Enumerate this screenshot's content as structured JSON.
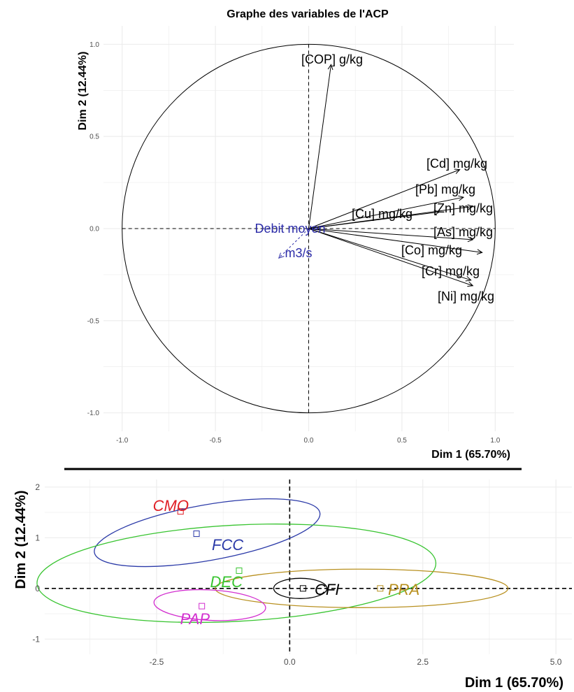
{
  "chart_data": [
    {
      "type": "scatter",
      "subtype": "pca-variables-correlation-circle",
      "title": "Graphe des variables de l'ACP",
      "xlabel": "Dim 1 (65.70%)",
      "ylabel": "Dim 2 (12.44%)",
      "xlim": [
        -1.1,
        1.1
      ],
      "ylim": [
        -1.1,
        1.1
      ],
      "xticks": [
        "-1.0",
        "-0.5",
        "0.0",
        "0.5",
        "1.0"
      ],
      "yticks": [
        "-1.0",
        "-0.5",
        "0.0",
        "0.5",
        "1.0"
      ],
      "grid": true,
      "unit_circle": true,
      "variables": [
        {
          "name": "[COP] g/kg",
          "x": 0.12,
          "y": 0.89,
          "color": "#000000"
        },
        {
          "name": "[Cd] mg/kg",
          "x": 0.81,
          "y": 0.32,
          "color": "#000000"
        },
        {
          "name": "[Pb] mg/kg",
          "x": 0.83,
          "y": 0.17,
          "color": "#000000"
        },
        {
          "name": "[Zn] mg/kg",
          "x": 0.88,
          "y": 0.12,
          "color": "#000000"
        },
        {
          "name": "[Cu] mg/kg",
          "x": 0.7,
          "y": 0.09,
          "color": "#000000"
        },
        {
          "name": "[As] mg/kg",
          "x": 0.88,
          "y": -0.06,
          "color": "#000000"
        },
        {
          "name": "[Co] mg/kg",
          "x": 0.93,
          "y": -0.13,
          "color": "#000000"
        },
        {
          "name": "[Cr] mg/kg",
          "x": 0.87,
          "y": -0.28,
          "color": "#000000"
        },
        {
          "name": "[Ni] mg/kg",
          "x": 0.88,
          "y": -0.31,
          "color": "#000000"
        },
        {
          "name_lines": [
            "Debit moyen",
            "m3/s"
          ],
          "x": -0.16,
          "y": -0.16,
          "color": "#2b2ba8",
          "dashed": true
        }
      ]
    },
    {
      "type": "scatter",
      "subtype": "pca-individuals-group-ellipses",
      "xlabel": "Dim 1 (65.70%)",
      "ylabel": "Dim 2 (12.44%)",
      "xlim": [
        -4.6,
        5.3
      ],
      "ylim": [
        -1.3,
        2.15
      ],
      "xticks": [
        "-2.5",
        "0.0",
        "2.5",
        "5.0"
      ],
      "yticks": [
        "-1",
        "0",
        "1",
        "2"
      ],
      "grid": true,
      "groups": [
        {
          "name": "CMO",
          "x": -2.05,
          "y": 1.52,
          "color": "#e01f26",
          "ellipse": null
        },
        {
          "name": "FCC",
          "x": -1.75,
          "y": 1.08,
          "color": "#2b3aa8",
          "ellipse": {
            "cx": -1.55,
            "cy": 1.1,
            "rx": 2.15,
            "ry": 0.55,
            "angle": 10
          }
        },
        {
          "name": "DEC",
          "x": -0.95,
          "y": 0.35,
          "color": "#38c430",
          "ellipse": {
            "cx": -1.0,
            "cy": 0.3,
            "rx": 3.75,
            "ry": 0.95,
            "angle": 3
          }
        },
        {
          "name": "CFI",
          "x": 0.25,
          "y": 0.0,
          "color": "#000000",
          "ellipse": {
            "cx": 0.2,
            "cy": 0.0,
            "rx": 0.5,
            "ry": 0.2,
            "angle": 0
          }
        },
        {
          "name": "PRA",
          "x": 1.7,
          "y": 0.0,
          "color": "#b8901f",
          "ellipse": {
            "cx": 1.35,
            "cy": 0.0,
            "rx": 2.75,
            "ry": 0.38,
            "angle": 0
          }
        },
        {
          "name": "PAP",
          "x": -1.65,
          "y": -0.35,
          "color": "#d22ecf",
          "ellipse": {
            "cx": -1.5,
            "cy": -0.33,
            "rx": 1.05,
            "ry": 0.3,
            "angle": -3
          }
        }
      ]
    }
  ],
  "colors": {
    "grid": "#ebebeb",
    "separator": "#000000",
    "axis_text": "#4d4d4d"
  }
}
